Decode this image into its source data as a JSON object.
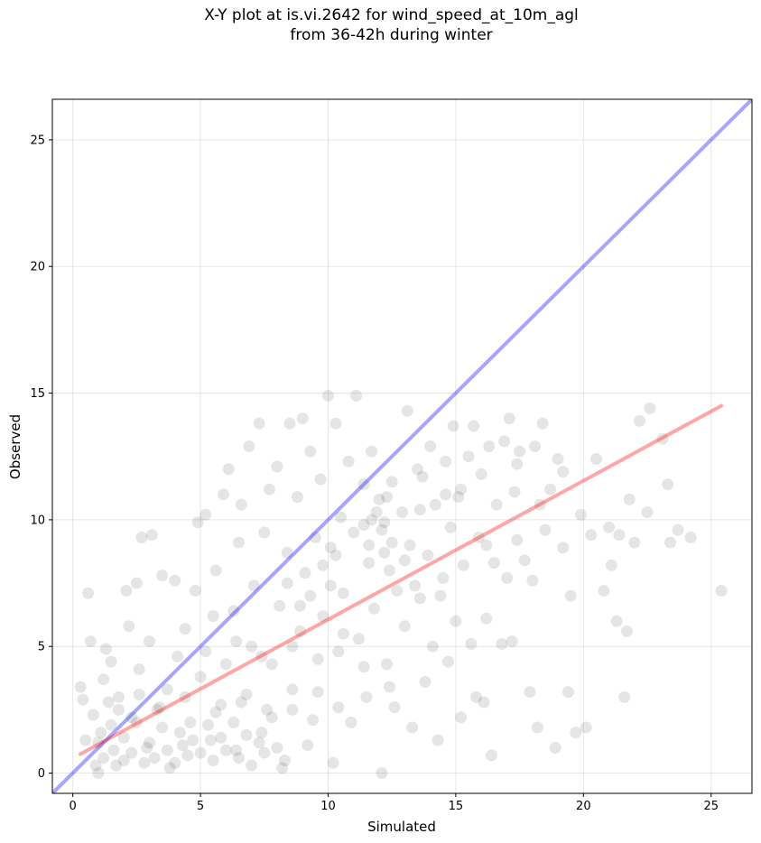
{
  "chart_data": {
    "type": "scatter",
    "title": "X-Y plot at is.vi.2642 for wind_speed_at_10m_agl",
    "subtitle": "from 36-42h during winter",
    "xlabel": "Simulated",
    "ylabel": "Observed",
    "xlim": [
      -0.8,
      26.6
    ],
    "ylim": [
      -0.8,
      26.6
    ],
    "xticks": [
      0,
      5,
      10,
      15,
      20,
      25
    ],
    "yticks": [
      0,
      5,
      10,
      15,
      20,
      25
    ],
    "grid": true,
    "marker_color": "#000000",
    "identity_line": {
      "x": [
        -0.8,
        26.6
      ],
      "y": [
        -0.8,
        26.6
      ],
      "color": "#0000ff"
    },
    "regression_line": {
      "x": [
        0.3,
        25.4
      ],
      "y": [
        0.75,
        14.5
      ],
      "color": "#ff0000"
    },
    "points": [
      [
        0.3,
        3.4
      ],
      [
        0.4,
        2.9
      ],
      [
        0.5,
        1.3
      ],
      [
        0.6,
        7.1
      ],
      [
        0.7,
        5.2
      ],
      [
        0.8,
        2.3
      ],
      [
        0.9,
        0.3
      ],
      [
        1.0,
        0.0
      ],
      [
        1.1,
        1.6
      ],
      [
        1.2,
        3.7
      ],
      [
        1.3,
        4.9
      ],
      [
        1.4,
        2.8
      ],
      [
        1.5,
        4.4
      ],
      [
        1.6,
        0.9
      ],
      [
        1.8,
        3.0
      ],
      [
        2.0,
        0.5
      ],
      [
        2.1,
        7.2
      ],
      [
        2.2,
        5.8
      ],
      [
        2.3,
        2.2
      ],
      [
        2.5,
        7.5
      ],
      [
        2.6,
        4.1
      ],
      [
        2.7,
        9.3
      ],
      [
        2.9,
        1.0
      ],
      [
        3.0,
        5.2
      ],
      [
        3.1,
        9.4
      ],
      [
        3.3,
        2.5
      ],
      [
        3.5,
        7.8
      ],
      [
        3.7,
        3.3
      ],
      [
        3.8,
        0.2
      ],
      [
        4.0,
        7.6
      ],
      [
        4.1,
        4.6
      ],
      [
        4.3,
        1.1
      ],
      [
        4.4,
        5.7
      ],
      [
        4.6,
        2.0
      ],
      [
        4.8,
        7.2
      ],
      [
        4.9,
        9.9
      ],
      [
        5.0,
        3.8
      ],
      [
        5.2,
        10.2
      ],
      [
        5.4,
        1.3
      ],
      [
        5.5,
        6.2
      ],
      [
        5.6,
        8.0
      ],
      [
        5.8,
        2.7
      ],
      [
        5.9,
        11.0
      ],
      [
        6.0,
        4.3
      ],
      [
        6.1,
        12.0
      ],
      [
        6.3,
        6.4
      ],
      [
        6.4,
        0.9
      ],
      [
        6.5,
        9.1
      ],
      [
        6.6,
        10.6
      ],
      [
        6.8,
        3.1
      ],
      [
        6.9,
        12.9
      ],
      [
        7.0,
        5.0
      ],
      [
        7.1,
        7.4
      ],
      [
        7.3,
        13.8
      ],
      [
        7.4,
        1.6
      ],
      [
        7.5,
        9.5
      ],
      [
        7.7,
        11.2
      ],
      [
        7.8,
        4.3
      ],
      [
        8.0,
        12.1
      ],
      [
        8.1,
        6.6
      ],
      [
        8.2,
        0.2
      ],
      [
        8.4,
        8.7
      ],
      [
        8.5,
        13.8
      ],
      [
        8.6,
        2.5
      ],
      [
        8.8,
        10.9
      ],
      [
        8.9,
        5.6
      ],
      [
        9.0,
        14.0
      ],
      [
        9.1,
        7.9
      ],
      [
        9.2,
        1.1
      ],
      [
        9.3,
        12.7
      ],
      [
        9.5,
        9.3
      ],
      [
        9.6,
        3.2
      ],
      [
        9.7,
        11.6
      ],
      [
        9.8,
        6.2
      ],
      [
        10.0,
        14.9
      ],
      [
        10.1,
        8.9
      ],
      [
        10.2,
        0.4
      ],
      [
        10.3,
        13.8
      ],
      [
        10.4,
        4.8
      ],
      [
        10.5,
        10.1
      ],
      [
        10.6,
        7.1
      ],
      [
        10.8,
        12.3
      ],
      [
        10.9,
        2.0
      ],
      [
        11.0,
        9.5
      ],
      [
        11.1,
        14.9
      ],
      [
        11.2,
        5.3
      ],
      [
        11.4,
        11.4
      ],
      [
        11.5,
        3.0
      ],
      [
        11.6,
        8.3
      ],
      [
        11.7,
        12.7
      ],
      [
        11.8,
        6.5
      ],
      [
        12.0,
        10.8
      ],
      [
        12.1,
        0.0
      ],
      [
        12.2,
        9.9
      ],
      [
        12.3,
        4.3
      ],
      [
        12.4,
        8.0
      ],
      [
        12.5,
        11.5
      ],
      [
        12.6,
        2.6
      ],
      [
        12.7,
        7.2
      ],
      [
        12.9,
        10.3
      ],
      [
        13.0,
        5.8
      ],
      [
        13.1,
        14.3
      ],
      [
        13.2,
        9.0
      ],
      [
        13.3,
        1.8
      ],
      [
        13.5,
        12.0
      ],
      [
        13.6,
        6.9
      ],
      [
        13.7,
        11.7
      ],
      [
        13.8,
        3.6
      ],
      [
        13.9,
        8.6
      ],
      [
        14.0,
        12.9
      ],
      [
        14.1,
        5.0
      ],
      [
        14.2,
        10.6
      ],
      [
        14.3,
        1.3
      ],
      [
        14.5,
        7.7
      ],
      [
        14.6,
        12.3
      ],
      [
        14.7,
        4.4
      ],
      [
        14.8,
        9.7
      ],
      [
        14.9,
        13.7
      ],
      [
        15.0,
        6.0
      ],
      [
        15.1,
        10.9
      ],
      [
        15.2,
        2.2
      ],
      [
        15.3,
        8.2
      ],
      [
        15.5,
        12.5
      ],
      [
        15.6,
        5.1
      ],
      [
        15.7,
        13.7
      ],
      [
        15.8,
        3.0
      ],
      [
        15.9,
        9.3
      ],
      [
        16.0,
        11.8
      ],
      [
        16.1,
        2.8
      ],
      [
        16.2,
        6.1
      ],
      [
        16.3,
        12.9
      ],
      [
        16.4,
        0.7
      ],
      [
        16.5,
        8.3
      ],
      [
        16.6,
        10.6
      ],
      [
        16.8,
        5.1
      ],
      [
        16.9,
        13.1
      ],
      [
        17.0,
        7.7
      ],
      [
        17.1,
        14.0
      ],
      [
        17.2,
        5.2
      ],
      [
        17.3,
        11.1
      ],
      [
        17.4,
        9.2
      ],
      [
        17.5,
        12.7
      ],
      [
        17.7,
        8.4
      ],
      [
        17.9,
        3.2
      ],
      [
        18.0,
        7.6
      ],
      [
        18.1,
        12.9
      ],
      [
        18.2,
        1.8
      ],
      [
        18.4,
        13.8
      ],
      [
        18.5,
        9.6
      ],
      [
        18.7,
        11.2
      ],
      [
        18.9,
        1.0
      ],
      [
        19.0,
        12.4
      ],
      [
        19.2,
        8.9
      ],
      [
        19.4,
        3.2
      ],
      [
        19.5,
        7.0
      ],
      [
        19.7,
        1.6
      ],
      [
        19.9,
        10.2
      ],
      [
        20.1,
        1.8
      ],
      [
        20.3,
        9.4
      ],
      [
        20.5,
        12.4
      ],
      [
        20.8,
        7.2
      ],
      [
        21.0,
        9.7
      ],
      [
        21.1,
        8.2
      ],
      [
        21.3,
        6.0
      ],
      [
        21.4,
        9.4
      ],
      [
        21.6,
        3.0
      ],
      [
        21.7,
        5.6
      ],
      [
        21.8,
        10.8
      ],
      [
        22.0,
        9.1
      ],
      [
        22.2,
        13.9
      ],
      [
        22.5,
        10.3
      ],
      [
        22.6,
        14.4
      ],
      [
        23.1,
        13.2
      ],
      [
        23.3,
        11.4
      ],
      [
        23.4,
        9.1
      ],
      [
        23.7,
        9.6
      ],
      [
        24.2,
        9.3
      ],
      [
        25.4,
        7.2
      ],
      [
        1.0,
        1.2
      ],
      [
        1.2,
        0.6
      ],
      [
        1.5,
        1.9
      ],
      [
        1.7,
        0.3
      ],
      [
        2.0,
        1.4
      ],
      [
        2.3,
        0.8
      ],
      [
        2.5,
        2.0
      ],
      [
        2.8,
        0.4
      ],
      [
        3.0,
        1.2
      ],
      [
        3.2,
        0.6
      ],
      [
        3.5,
        1.8
      ],
      [
        3.7,
        0.9
      ],
      [
        4.0,
        0.4
      ],
      [
        4.2,
        1.6
      ],
      [
        4.5,
        0.7
      ],
      [
        4.7,
        1.3
      ],
      [
        5.0,
        0.8
      ],
      [
        5.3,
        1.9
      ],
      [
        5.5,
        0.5
      ],
      [
        5.8,
        1.4
      ],
      [
        6.0,
        0.9
      ],
      [
        6.3,
        2.0
      ],
      [
        6.5,
        0.6
      ],
      [
        6.8,
        1.5
      ],
      [
        7.0,
        0.3
      ],
      [
        7.3,
        1.2
      ],
      [
        7.5,
        0.8
      ],
      [
        7.8,
        2.2
      ],
      [
        8.0,
        1.0
      ],
      [
        8.3,
        0.5
      ],
      [
        1.8,
        2.5
      ],
      [
        2.6,
        3.1
      ],
      [
        3.4,
        2.6
      ],
      [
        4.4,
        3.0
      ],
      [
        5.6,
        2.4
      ],
      [
        6.6,
        2.8
      ],
      [
        7.6,
        2.5
      ],
      [
        8.6,
        3.3
      ],
      [
        9.4,
        2.1
      ],
      [
        10.4,
        2.6
      ],
      [
        9.6,
        4.5
      ],
      [
        10.6,
        5.5
      ],
      [
        11.4,
        4.2
      ],
      [
        12.4,
        3.4
      ],
      [
        8.6,
        5.0
      ],
      [
        7.4,
        4.6
      ],
      [
        6.4,
        5.2
      ],
      [
        5.2,
        4.8
      ],
      [
        11.6,
        9.0
      ],
      [
        11.9,
        10.3
      ],
      [
        12.1,
        9.6
      ],
      [
        12.3,
        10.9
      ],
      [
        12.5,
        9.1
      ],
      [
        11.7,
        10.0
      ],
      [
        12.2,
        8.7
      ],
      [
        11.4,
        9.8
      ],
      [
        10.3,
        8.6
      ],
      [
        10.1,
        7.4
      ],
      [
        9.8,
        8.2
      ],
      [
        9.3,
        7.0
      ],
      [
        8.9,
        6.6
      ],
      [
        8.4,
        7.5
      ],
      [
        13.0,
        8.4
      ],
      [
        13.4,
        7.4
      ],
      [
        14.4,
        7.0
      ],
      [
        15.2,
        11.2
      ],
      [
        14.6,
        11.0
      ],
      [
        13.6,
        10.4
      ],
      [
        16.2,
        9.0
      ],
      [
        17.4,
        12.2
      ],
      [
        18.3,
        10.6
      ],
      [
        19.2,
        11.9
      ]
    ]
  }
}
